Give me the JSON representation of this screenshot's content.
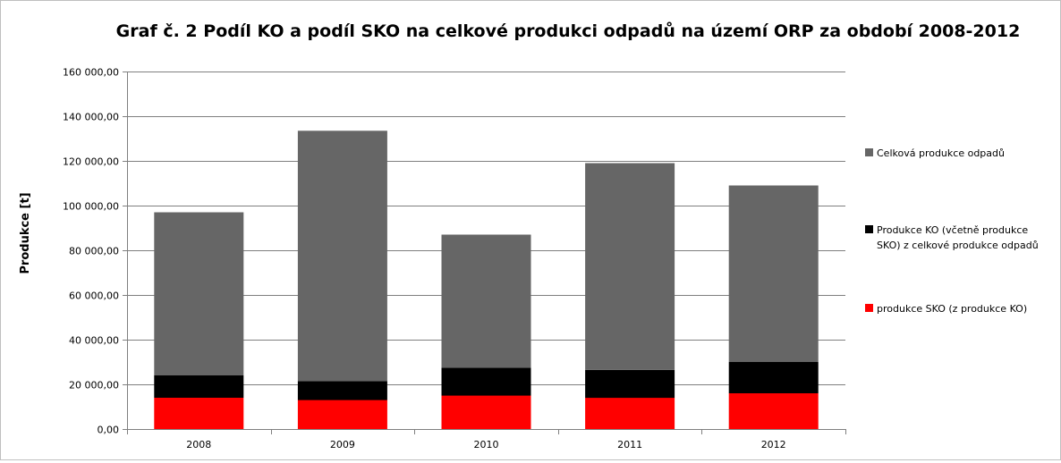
{
  "chart_data": {
    "type": "bar",
    "stacked": true,
    "title": "Graf č. 2 Podíl KO a podíl SKO na celkové produkci odpadů na území ORP za období 2008-2012",
    "xlabel": "",
    "ylabel": "Produkce [t]",
    "ylim": [
      0,
      160000
    ],
    "grid": true,
    "legend_position": "right",
    "categories": [
      "2008",
      "2009",
      "2010",
      "2011",
      "2012"
    ],
    "y_tick_labels": [
      "0,00",
      "20 000,00",
      "40 000,00",
      "60 000,00",
      "80 000,00",
      "100 000,00",
      "120 000,00",
      "140 000,00",
      "160 000,00"
    ],
    "series": [
      {
        "name": "produkce SKO (z produkce KO)",
        "values": [
          14000,
          13000,
          15000,
          14000,
          16000
        ],
        "color": "#ff0000"
      },
      {
        "name": "Produkce KO (včetně produkce SKO) z celkové produkce odpadů",
        "values": [
          24000,
          21500,
          27500,
          26500,
          30000
        ],
        "color": "#000000"
      },
      {
        "name": "Celková produkce odpadů",
        "values": [
          97000,
          133500,
          87000,
          119000,
          109000
        ],
        "color": "#666666"
      }
    ],
    "legend": [
      {
        "label_lines": [
          "Celková produkce odpadů"
        ],
        "color": "#666666"
      },
      {
        "label_lines": [
          "Produkce KO (včetně produkce",
          "SKO) z celkové produkce odpadů"
        ],
        "color": "#000000"
      },
      {
        "label_lines": [
          "produkce SKO (z produkce KO)"
        ],
        "color": "#ff0000"
      }
    ]
  }
}
